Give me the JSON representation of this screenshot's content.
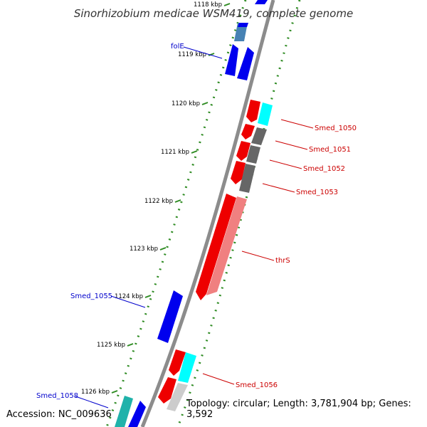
{
  "title": "Sinorhizobium medicae WSM419, complete genome",
  "footer": {
    "accession": "Accession: NC_009636",
    "topology": "Topology: circular; Length: 3,781,904 bp; Genes: 3,592"
  },
  "colors": {
    "backbone": "#8c8c8c",
    "tick": "#2e8b22",
    "forward_label": "#0000cc",
    "reverse_label": "#cc0000",
    "forward_gene": "#0000ee",
    "reverse_gene": "#ee0000",
    "cds_cyan": "#00ffff",
    "cds_gray": "#666666",
    "cds_pink": "#f08080",
    "cds_steel": "#4682b4",
    "cds_teal": "#20b2aa",
    "cds_lightgray": "#cccccc"
  },
  "ticks": [
    "1118 kbp",
    "1119 kbp",
    "1120 kbp",
    "1121 kbp",
    "1122 kbp",
    "1123 kbp",
    "1124 kbp",
    "1125 kbp",
    "1126 kbp"
  ],
  "labels": {
    "forward": [
      "folE",
      "Smed_1055",
      "Smed_1058"
    ],
    "reverse": [
      "Smed_1050",
      "Smed_1051",
      "Smed_1052",
      "Smed_1053",
      "thrS",
      "Smed_1056"
    ]
  }
}
